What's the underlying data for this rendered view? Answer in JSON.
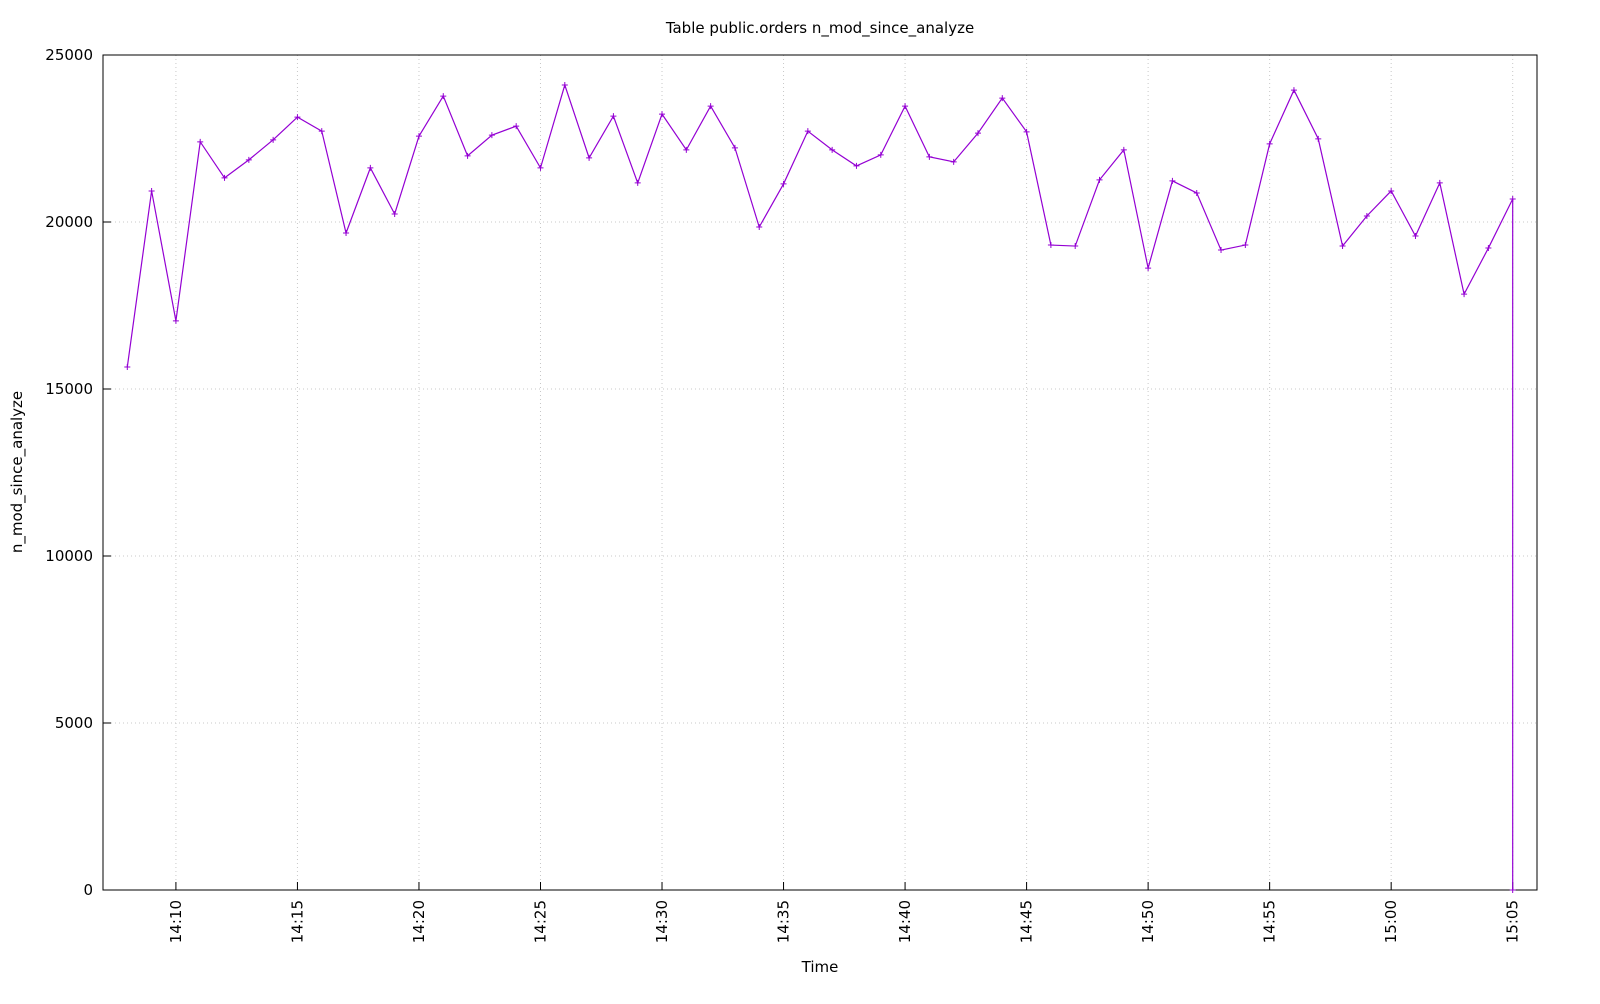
{
  "chart_data": {
    "type": "line",
    "title": "Table public.orders n_mod_since_analyze",
    "x_label": "Time",
    "y_label": "n_mod_since_analyze",
    "x": [
      "14:08",
      "14:09",
      "14:10",
      "14:11",
      "14:12",
      "14:13",
      "14:14",
      "14:15",
      "14:16",
      "14:17",
      "14:18",
      "14:19",
      "14:20",
      "14:21",
      "14:22",
      "14:23",
      "14:24",
      "14:25",
      "14:26",
      "14:27",
      "14:28",
      "14:29",
      "14:30",
      "14:31",
      "14:32",
      "14:33",
      "14:34",
      "14:35",
      "14:36",
      "14:37",
      "14:38",
      "14:39",
      "14:40",
      "14:41",
      "14:42",
      "14:43",
      "14:44",
      "14:45",
      "14:46",
      "14:47",
      "14:48",
      "14:49",
      "14:50",
      "14:51",
      "14:52",
      "14:53",
      "14:54",
      "14:55",
      "14:56",
      "14:57",
      "14:58",
      "14:59",
      "15:00",
      "15:01",
      "15:02",
      "15:03",
      "15:04",
      "15:05",
      "15:05"
    ],
    "series": [
      {
        "name": "n_mod_since_analyze",
        "color": "#9400d3",
        "values": [
          15660,
          20930,
          17040,
          22400,
          21320,
          21860,
          22460,
          23140,
          22720,
          19670,
          21620,
          20240,
          22570,
          23770,
          21980,
          22600,
          22870,
          21620,
          24100,
          21920,
          23170,
          21170,
          23230,
          22160,
          23470,
          22220,
          19850,
          21140,
          22720,
          22160,
          21680,
          22010,
          23470,
          21950,
          21800,
          22660,
          23710,
          22700,
          19310,
          19280,
          21260,
          22160,
          18620,
          21230,
          20870,
          19160,
          19310,
          22340,
          23950,
          22490,
          19280,
          20180,
          20930,
          19580,
          21170,
          17840,
          19220,
          20690,
          0
        ]
      }
    ],
    "xlim": [
      "14:07",
      "15:06"
    ],
    "xticks": [
      "14:10",
      "14:15",
      "14:20",
      "14:25",
      "14:30",
      "14:35",
      "14:40",
      "14:45",
      "14:50",
      "14:55",
      "15:00",
      "15:05"
    ],
    "ylim": [
      0,
      25000
    ],
    "yticks": [
      0,
      5000,
      10000,
      15000,
      20000,
      25000
    ],
    "grid": true
  }
}
